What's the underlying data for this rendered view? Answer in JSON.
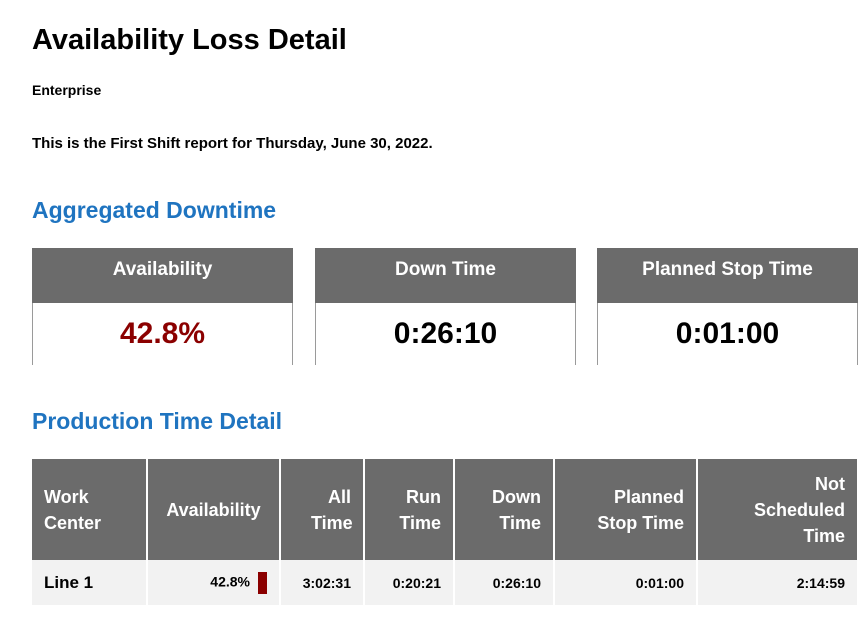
{
  "header": {
    "title": "Availability Loss Detail",
    "subtitle": "Enterprise",
    "description": "This is the First Shift report for Thursday, June 30, 2022."
  },
  "aggregated": {
    "title": "Aggregated Downtime",
    "cards": [
      {
        "label": "Availability",
        "value": "42.8%"
      },
      {
        "label": "Down Time",
        "value": "0:26:10"
      },
      {
        "label": "Planned Stop Time",
        "value": "0:01:00"
      }
    ]
  },
  "detail": {
    "title": "Production Time Detail",
    "table": {
      "header": [
        "Work Center",
        "Availability",
        "All Time",
        "Run Time",
        "Down Time",
        "Planned Stop Time",
        "Not Scheduled Time"
      ],
      "rows": [
        [
          "Line 1",
          "42.8%",
          "3:02:31",
          "0:20:21",
          "0:26:10",
          "0:01:00",
          "2:14:59"
        ]
      ]
    }
  }
}
